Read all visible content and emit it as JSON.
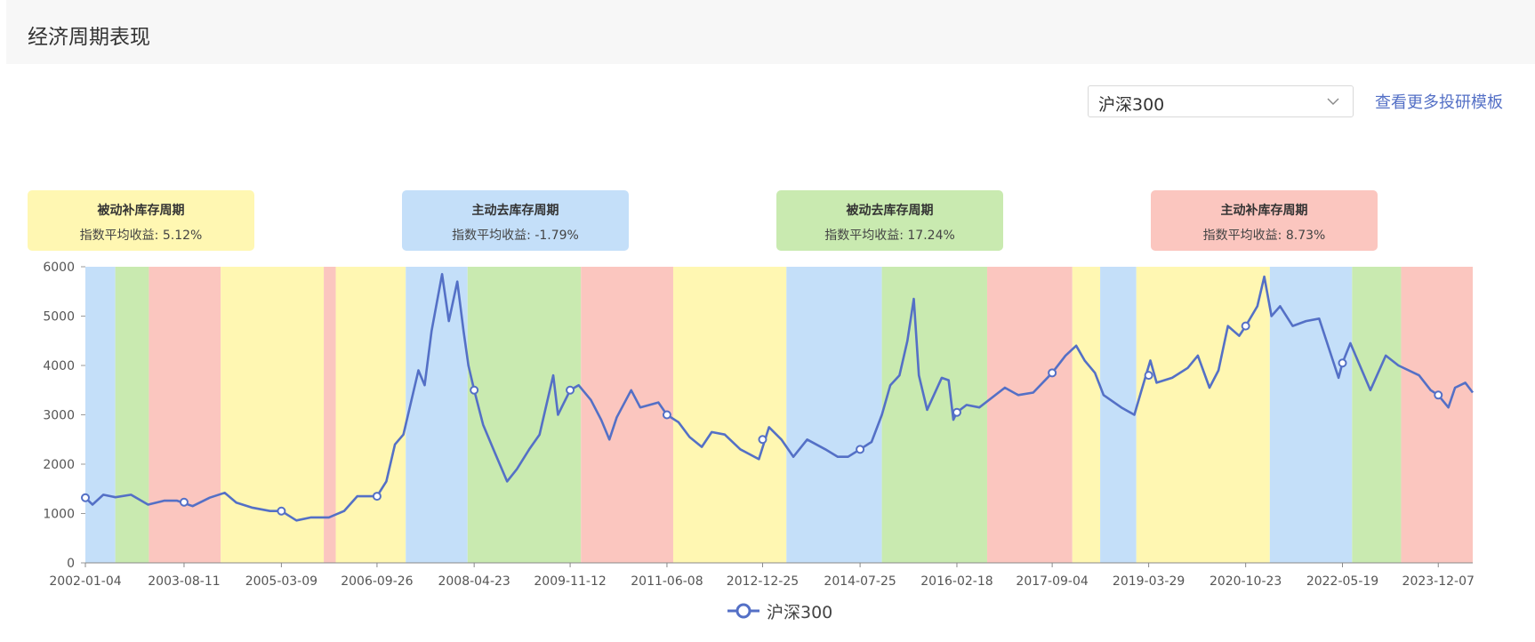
{
  "page": {
    "title": "经济周期表现"
  },
  "controls": {
    "index_select_value": "沪深300",
    "more_templates_link": "查看更多投研模板"
  },
  "cycles": [
    {
      "name": "被动补库存周期",
      "return_label": "指数平均收益",
      "return_value": "5.12%",
      "color": "#fff7b2"
    },
    {
      "name": "主动去库存周期",
      "return_label": "指数平均收益",
      "return_value": "-1.79%",
      "color": "#c4dff9"
    },
    {
      "name": "被动去库存周期",
      "return_label": "指数平均收益",
      "return_value": "17.24%",
      "color": "#c9eab0"
    },
    {
      "name": "主动补库存周期",
      "return_label": "指数平均收益",
      "return_value": "8.73%",
      "color": "#fbc6bf"
    }
  ],
  "chart_data": {
    "type": "line",
    "x_range": [
      "2002-01-04",
      "2024-06-28"
    ],
    "xtick_labels": [
      "2002-01-04",
      "2003-08-11",
      "2005-03-09",
      "2006-09-26",
      "2008-04-23",
      "2009-11-12",
      "2011-06-08",
      "2012-12-25",
      "2014-07-25",
      "2016-02-18",
      "2017-09-04",
      "2019-03-29",
      "2020-10-23",
      "2022-05-19",
      "2023-12-07"
    ],
    "ylim": [
      0,
      6000
    ],
    "ytick_labels": [
      "0",
      "1000",
      "2000",
      "3000",
      "4000",
      "5000",
      "6000"
    ],
    "legend": {
      "position": "bottom-center"
    },
    "series": [
      {
        "name": "沪深300",
        "color": "#5470c6",
        "points": [
          [
            "2002-01-04",
            1320
          ],
          [
            "2002-02-15",
            1180
          ],
          [
            "2002-04-20",
            1380
          ],
          [
            "2002-07-01",
            1330
          ],
          [
            "2002-10-01",
            1380
          ],
          [
            "2003-01-10",
            1180
          ],
          [
            "2003-04-15",
            1260
          ],
          [
            "2003-07-01",
            1260
          ],
          [
            "2003-10-01",
            1150
          ],
          [
            "2004-01-10",
            1320
          ],
          [
            "2004-04-08",
            1420
          ],
          [
            "2004-06-15",
            1220
          ],
          [
            "2004-09-15",
            1120
          ],
          [
            "2005-01-01",
            1050
          ],
          [
            "2005-03-09",
            1050
          ],
          [
            "2005-06-06",
            860
          ],
          [
            "2005-09-01",
            920
          ],
          [
            "2005-12-15",
            920
          ],
          [
            "2006-03-15",
            1050
          ],
          [
            "2006-06-01",
            1350
          ],
          [
            "2006-09-26",
            1350
          ],
          [
            "2006-11-20",
            1650
          ],
          [
            "2007-01-10",
            2400
          ],
          [
            "2007-03-01",
            2600
          ],
          [
            "2007-05-29",
            3900
          ],
          [
            "2007-07-05",
            3600
          ],
          [
            "2007-08-15",
            4700
          ],
          [
            "2007-10-16",
            5850
          ],
          [
            "2007-11-25",
            4900
          ],
          [
            "2008-01-14",
            5700
          ],
          [
            "2008-02-20",
            4700
          ],
          [
            "2008-03-20",
            4000
          ],
          [
            "2008-04-23",
            3500
          ],
          [
            "2008-06-15",
            2800
          ],
          [
            "2008-08-15",
            2300
          ],
          [
            "2008-11-04",
            1650
          ],
          [
            "2009-01-01",
            1900
          ],
          [
            "2009-03-15",
            2300
          ],
          [
            "2009-05-15",
            2600
          ],
          [
            "2009-08-04",
            3800
          ],
          [
            "2009-09-01",
            3000
          ],
          [
            "2009-11-12",
            3500
          ],
          [
            "2010-01-01",
            3600
          ],
          [
            "2010-03-15",
            3300
          ],
          [
            "2010-05-15",
            2900
          ],
          [
            "2010-07-02",
            2500
          ],
          [
            "2010-08-15",
            2950
          ],
          [
            "2010-11-08",
            3500
          ],
          [
            "2011-01-01",
            3150
          ],
          [
            "2011-04-18",
            3250
          ],
          [
            "2011-06-08",
            3000
          ],
          [
            "2011-08-15",
            2850
          ],
          [
            "2011-10-20",
            2550
          ],
          [
            "2011-12-31",
            2350
          ],
          [
            "2012-02-28",
            2650
          ],
          [
            "2012-05-15",
            2600
          ],
          [
            "2012-08-15",
            2300
          ],
          [
            "2012-12-03",
            2100
          ],
          [
            "2013-02-01",
            2750
          ],
          [
            "2013-04-15",
            2500
          ],
          [
            "2013-06-25",
            2150
          ],
          [
            "2013-09-15",
            2500
          ],
          [
            "2013-12-31",
            2300
          ],
          [
            "2014-03-15",
            2150
          ],
          [
            "2014-05-15",
            2150
          ],
          [
            "2014-07-25",
            2300
          ],
          [
            "2014-10-01",
            2450
          ],
          [
            "2014-12-01",
            3000
          ],
          [
            "2015-01-20",
            3600
          ],
          [
            "2015-03-15",
            3800
          ],
          [
            "2015-05-01",
            4500
          ],
          [
            "2015-06-08",
            5350
          ],
          [
            "2015-07-08",
            3800
          ],
          [
            "2015-08-26",
            3100
          ],
          [
            "2015-11-20",
            3750
          ],
          [
            "2015-12-31",
            3700
          ],
          [
            "2016-01-28",
            2900
          ],
          [
            "2016-02-18",
            3050
          ],
          [
            "2016-04-15",
            3200
          ],
          [
            "2016-06-30",
            3150
          ],
          [
            "2016-11-28",
            3550
          ],
          [
            "2017-02-15",
            3400
          ],
          [
            "2017-05-15",
            3450
          ],
          [
            "2017-09-04",
            3850
          ],
          [
            "2017-11-22",
            4200
          ],
          [
            "2018-01-24",
            4400
          ],
          [
            "2018-03-15",
            4100
          ],
          [
            "2018-05-15",
            3850
          ],
          [
            "2018-07-05",
            3400
          ],
          [
            "2018-10-18",
            3150
          ],
          [
            "2019-01-03",
            3000
          ],
          [
            "2019-02-15",
            3500
          ],
          [
            "2019-04-08",
            4100
          ],
          [
            "2019-05-15",
            3650
          ],
          [
            "2019-08-15",
            3750
          ],
          [
            "2019-11-15",
            3950
          ],
          [
            "2020-01-14",
            4200
          ],
          [
            "2020-03-23",
            3550
          ],
          [
            "2020-05-15",
            3900
          ],
          [
            "2020-07-10",
            4800
          ],
          [
            "2020-09-15",
            4600
          ],
          [
            "2020-10-23",
            4800
          ],
          [
            "2020-12-31",
            5200
          ],
          [
            "2021-02-10",
            5800
          ],
          [
            "2021-03-25",
            5000
          ],
          [
            "2021-05-15",
            5200
          ],
          [
            "2021-07-28",
            4800
          ],
          [
            "2021-10-15",
            4900
          ],
          [
            "2022-01-01",
            4950
          ],
          [
            "2022-04-26",
            3750
          ],
          [
            "2022-05-19",
            4050
          ],
          [
            "2022-07-05",
            4450
          ],
          [
            "2022-10-31",
            3500
          ],
          [
            "2023-01-30",
            4200
          ],
          [
            "2023-04-15",
            4000
          ],
          [
            "2023-08-15",
            3800
          ],
          [
            "2023-10-23",
            3500
          ],
          [
            "2023-12-07",
            3400
          ],
          [
            "2024-02-05",
            3150
          ],
          [
            "2024-03-15",
            3550
          ],
          [
            "2024-05-15",
            3650
          ],
          [
            "2024-06-28",
            3450
          ]
        ],
        "marked_points": [
          [
            "2002-01-04",
            1320
          ],
          [
            "2003-08-11",
            1230
          ],
          [
            "2005-03-09",
            1050
          ],
          [
            "2006-09-26",
            1350
          ],
          [
            "2008-04-23",
            3500
          ],
          [
            "2009-11-12",
            3500
          ],
          [
            "2011-06-08",
            3000
          ],
          [
            "2012-12-25",
            2500
          ],
          [
            "2014-07-25",
            2300
          ],
          [
            "2016-02-18",
            3050
          ],
          [
            "2017-09-04",
            3850
          ],
          [
            "2019-03-29",
            3800
          ],
          [
            "2020-10-23",
            4800
          ],
          [
            "2022-05-19",
            4050
          ],
          [
            "2023-12-07",
            3400
          ]
        ]
      }
    ],
    "cycle_bands": [
      [
        "2002-01-04",
        "2002-06-30",
        "主动去库存周期"
      ],
      [
        "2002-06-30",
        "2003-01-15",
        "被动去库存周期"
      ],
      [
        "2003-01-15",
        "2004-03-15",
        "主动补库存周期"
      ],
      [
        "2004-03-15",
        "2005-11-15",
        "被动补库存周期"
      ],
      [
        "2005-11-15",
        "2006-01-25",
        "主动补库存周期"
      ],
      [
        "2006-01-25",
        "2007-03-15",
        "被动补库存周期"
      ],
      [
        "2007-03-15",
        "2008-03-15",
        "主动去库存周期"
      ],
      [
        "2008-03-15",
        "2010-01-15",
        "被动去库存周期"
      ],
      [
        "2010-01-15",
        "2011-07-15",
        "主动补库存周期"
      ],
      [
        "2011-07-15",
        "2013-05-15",
        "被动补库存周期"
      ],
      [
        "2013-05-15",
        "2014-12-01",
        "主动去库存周期"
      ],
      [
        "2014-12-01",
        "2016-08-15",
        "被动去库存周期"
      ],
      [
        "2016-08-15",
        "2018-01-01",
        "主动补库存周期"
      ],
      [
        "2018-01-01",
        "2018-06-15",
        "被动补库存周期"
      ],
      [
        "2018-06-15",
        "2019-01-15",
        "主动去库存周期"
      ],
      [
        "2019-01-15",
        "2021-03-15",
        "被动补库存周期"
      ],
      [
        "2021-03-15",
        "2022-07-15",
        "主动去库存周期"
      ],
      [
        "2022-07-15",
        "2023-05-01",
        "被动去库存周期"
      ],
      [
        "2023-05-01",
        "2024-06-28",
        "主动补库存周期"
      ]
    ]
  }
}
